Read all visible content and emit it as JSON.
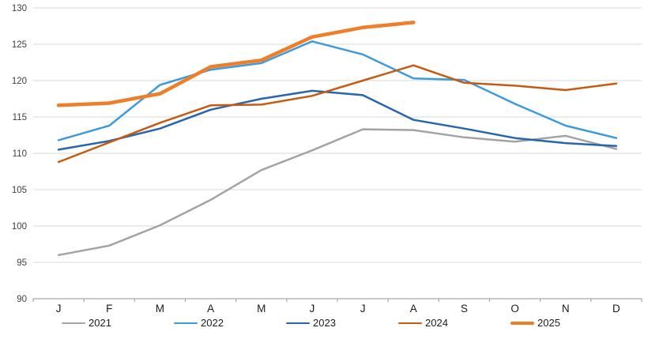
{
  "chart_data": {
    "type": "line",
    "title": "",
    "xlabel": "",
    "ylabel": "",
    "categories": [
      "J",
      "F",
      "M",
      "A",
      "M",
      "J",
      "J",
      "A",
      "S",
      "O",
      "N",
      "D"
    ],
    "ylim": [
      90,
      130
    ],
    "ytick_interval": 5,
    "ytick_labels": [
      "90",
      "95",
      "100",
      "105",
      "110",
      "115",
      "120",
      "125",
      "130"
    ],
    "grid": "horizontal",
    "legend_position": "bottom",
    "series": [
      {
        "name": "2021",
        "color": "#A3A3A3",
        "line_width": 2.5,
        "values": [
          96.0,
          97.3,
          100.1,
          103.6,
          107.7,
          110.4,
          113.3,
          113.2,
          112.2,
          111.6,
          112.4,
          110.6
        ]
      },
      {
        "name": "2022",
        "color": "#3D9BDB",
        "line_width": 2.5,
        "values": [
          111.8,
          113.8,
          119.4,
          121.5,
          122.4,
          125.4,
          123.6,
          120.3,
          120.1,
          116.8,
          113.8,
          112.1
        ]
      },
      {
        "name": "2023",
        "color": "#2765AD",
        "line_width": 2.5,
        "values": [
          110.5,
          111.7,
          113.4,
          116.0,
          117.5,
          118.6,
          118.0,
          114.6,
          113.4,
          112.1,
          111.4,
          111.0
        ]
      },
      {
        "name": "2024",
        "color": "#C55A11",
        "line_width": 2.5,
        "values": [
          108.8,
          111.5,
          114.2,
          116.6,
          116.7,
          117.9,
          120.0,
          122.1,
          119.7,
          119.3,
          118.7,
          119.6
        ]
      },
      {
        "name": "2025",
        "color": "#F07D28",
        "line_width": 4.5,
        "values": [
          116.6,
          116.9,
          118.2,
          121.9,
          122.8,
          126.0,
          127.3,
          128.0
        ]
      }
    ],
    "colors": {
      "background": "#FFFFFF",
      "gridline": "#D9D9D9",
      "axis_line": "#A6A6A6",
      "ytick_label": "#404040",
      "xtick_label": "#1A1A1A"
    }
  }
}
